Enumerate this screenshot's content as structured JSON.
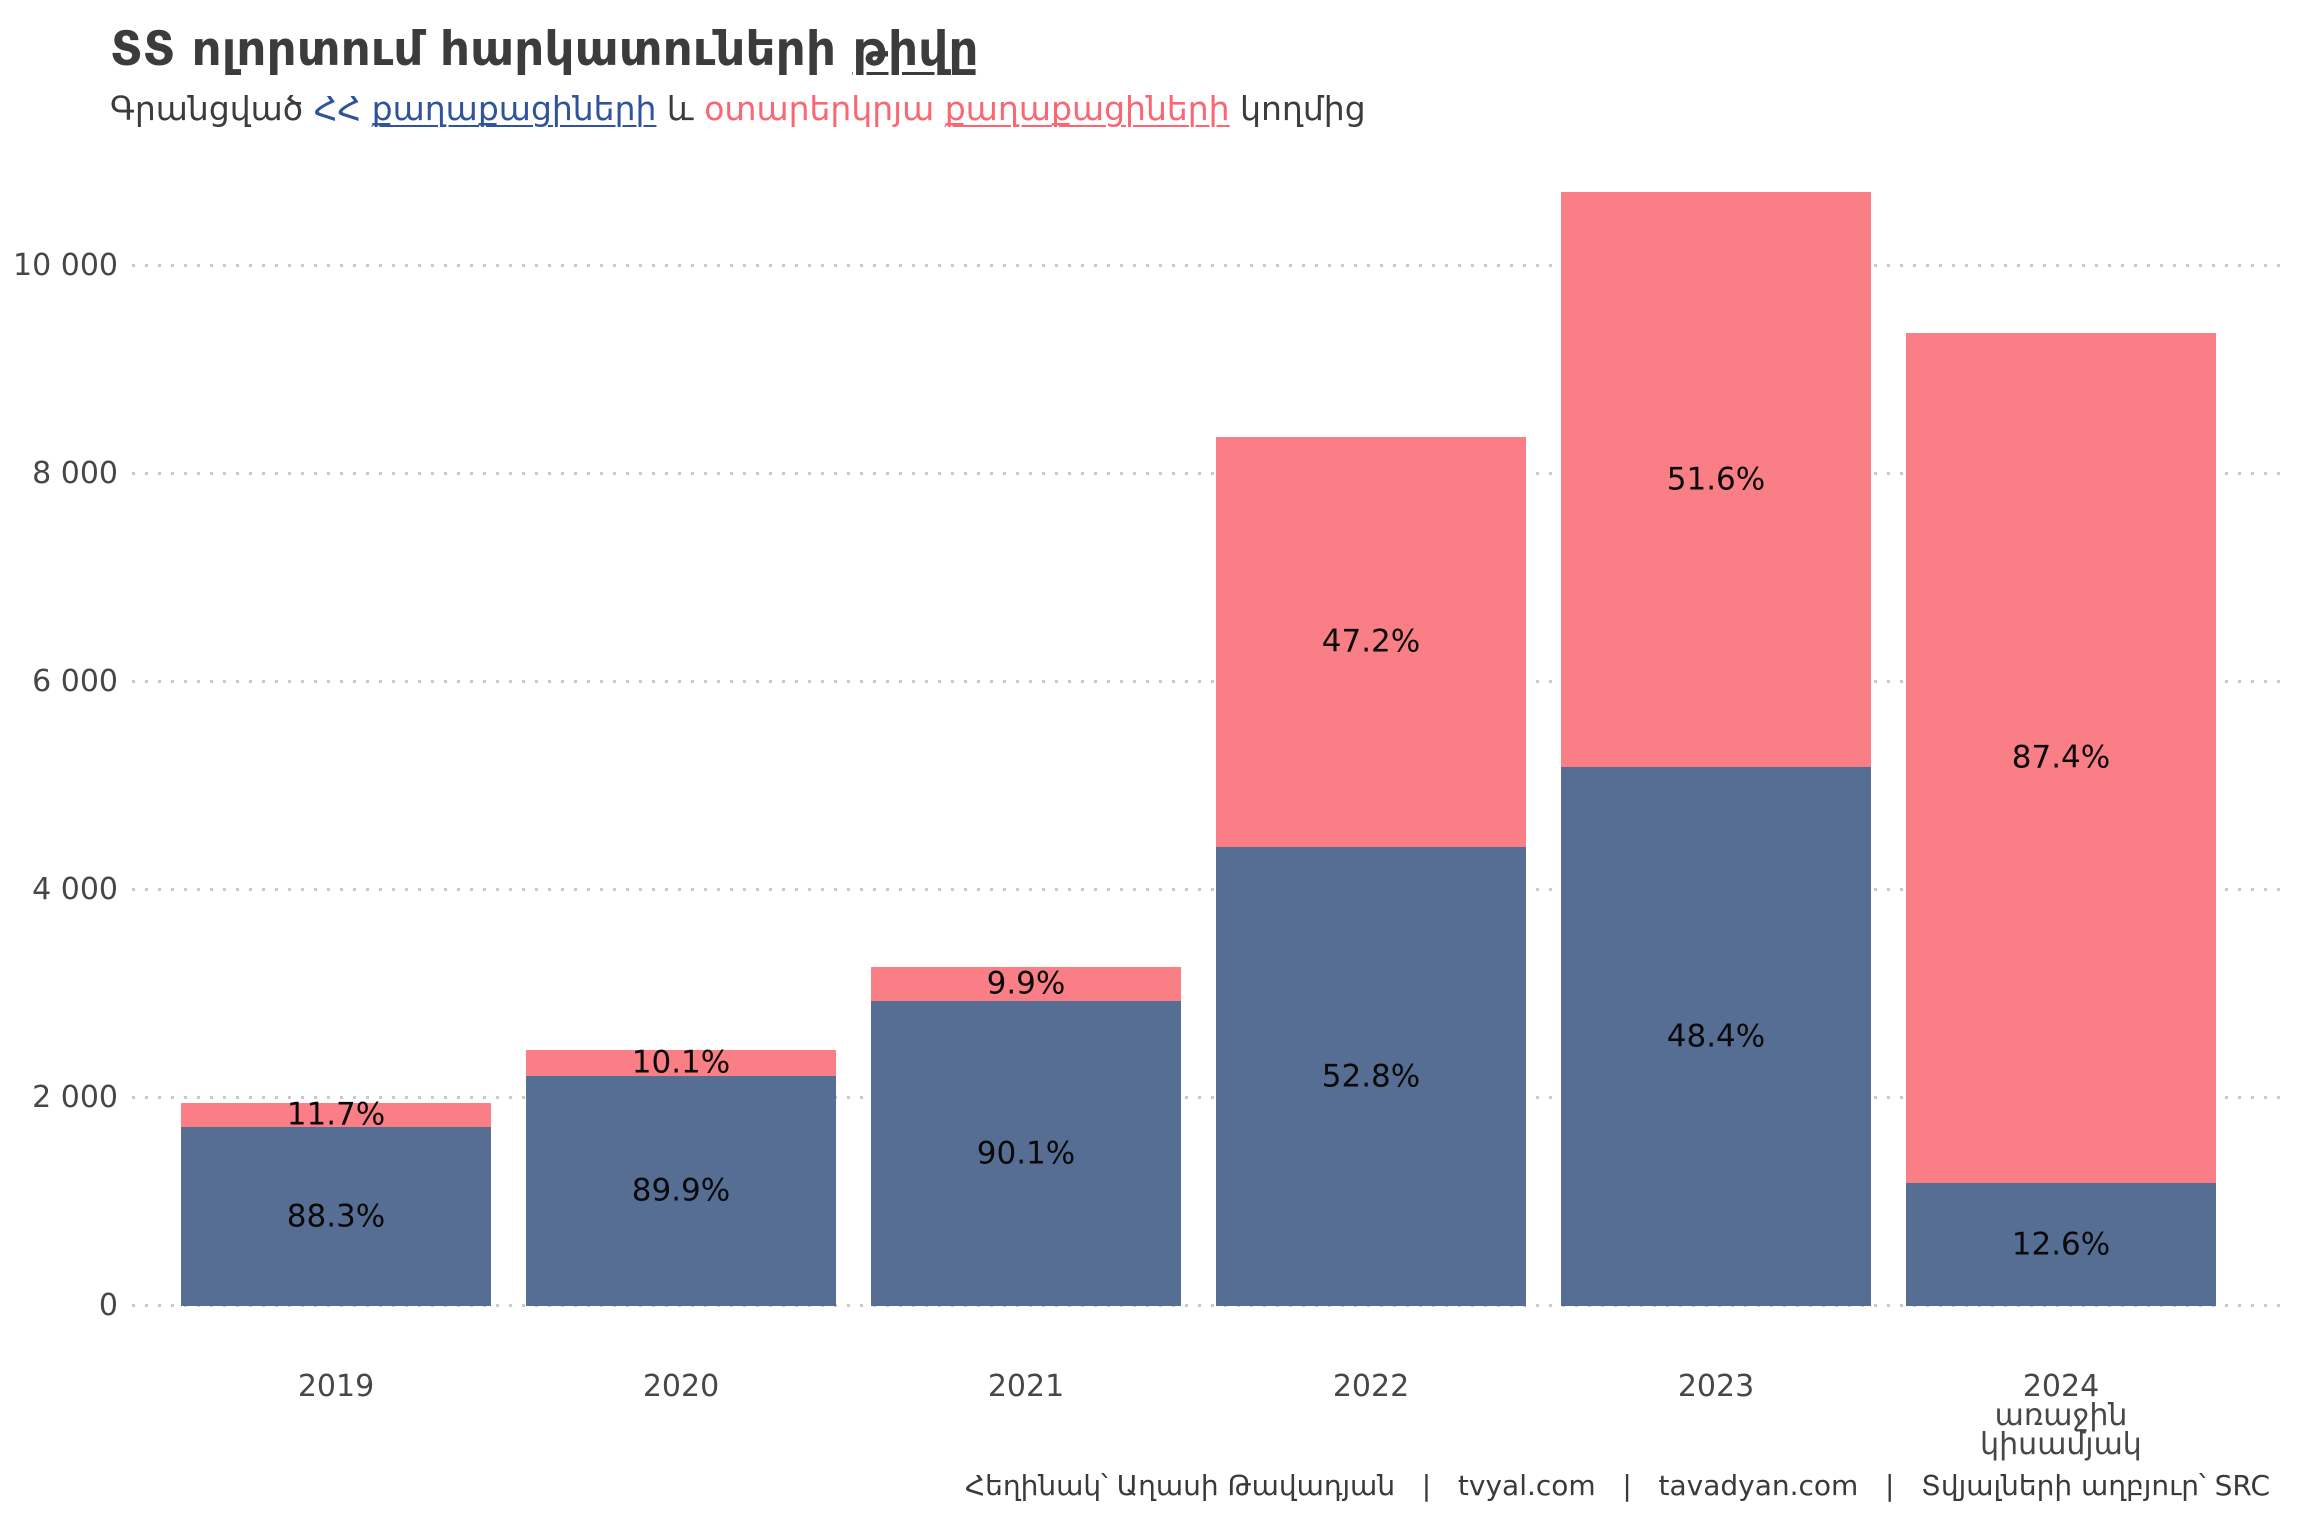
{
  "header": {
    "title_parts": [
      {
        "text": "ՏՏ ոլորտում հարկատուների ",
        "style": "plain"
      },
      {
        "text": "թիվը",
        "style": "underline"
      }
    ],
    "subtitle_parts": [
      {
        "text": "Գրանցված ",
        "style": "plain"
      },
      {
        "text": "ՀՀ",
        "style": "blue"
      },
      {
        "text": " ",
        "style": "plain"
      },
      {
        "text": "քաղաքացիների",
        "style": "blue-underline"
      },
      {
        "text": " և ",
        "style": "plain"
      },
      {
        "text": "օտարերկրյա ",
        "style": "red"
      },
      {
        "text": "քաղաքացիների",
        "style": "red-underline"
      },
      {
        "text": " կողմից",
        "style": "plain"
      }
    ]
  },
  "caption": {
    "parts": [
      "Հեղինակ՝ Աղասի Թավադյան",
      "tvyal.com",
      "tavadyan.com",
      "Տվյալների աղբյուր՝ SRC"
    ],
    "separator": "|"
  },
  "colors": {
    "bar_citizens_blue": "#566E93",
    "bar_foreign_pink": "#F97E86",
    "text_blue": "#2F549B",
    "text_red": "#FA6672",
    "title_dark": "#3C3C3C",
    "axis_text": "#474747",
    "gridline": "#C9C9C9",
    "pct_label": "#0A0A0A",
    "caption_text": "#3A3A3A"
  },
  "chart_data": {
    "type": "bar",
    "stacked": true,
    "title": "ՏՏ ոլորտում հարկատուների թիվը",
    "subtitle": "Գրանցված ՀՀ քաղաքացիների և օտարերկրյա քաղաքացիների կողմից",
    "categories": [
      [
        "2019"
      ],
      [
        "2020"
      ],
      [
        "2021"
      ],
      [
        "2022"
      ],
      [
        "2023"
      ],
      [
        "2024",
        "առաջին",
        "կիսամյակ"
      ]
    ],
    "series": [
      {
        "name": "ՀՀ քաղաքացիներ",
        "color": "#566E93",
        "values": [
          1722,
          2212,
          2937,
          4414,
          5184,
          1178
        ],
        "pct_labels": [
          "88.3%",
          "89.9%",
          "90.1%",
          "52.8%",
          "48.4%",
          "12.6%"
        ]
      },
      {
        "name": "օտարերկրյա քաղաքացիներ",
        "color": "#F97E86",
        "values": [
          228,
          248,
          323,
          3946,
          5526,
          8172
        ],
        "pct_labels": [
          "11.7%",
          "10.1%",
          "9.9%",
          "47.2%",
          "51.6%",
          "87.4%"
        ]
      }
    ],
    "totals": [
      1950,
      2460,
      3260,
      8360,
      10710,
      9350
    ],
    "y_ticks": [
      0,
      2000,
      4000,
      6000,
      8000,
      10000
    ],
    "y_tick_labels": [
      "0",
      "2 000",
      "4 000",
      "6 000",
      "8 000",
      "10 000"
    ],
    "ylim": [
      0,
      10900
    ],
    "grid": "dotted-horizontal",
    "legend": "none (encoded in subtitle colors)"
  }
}
